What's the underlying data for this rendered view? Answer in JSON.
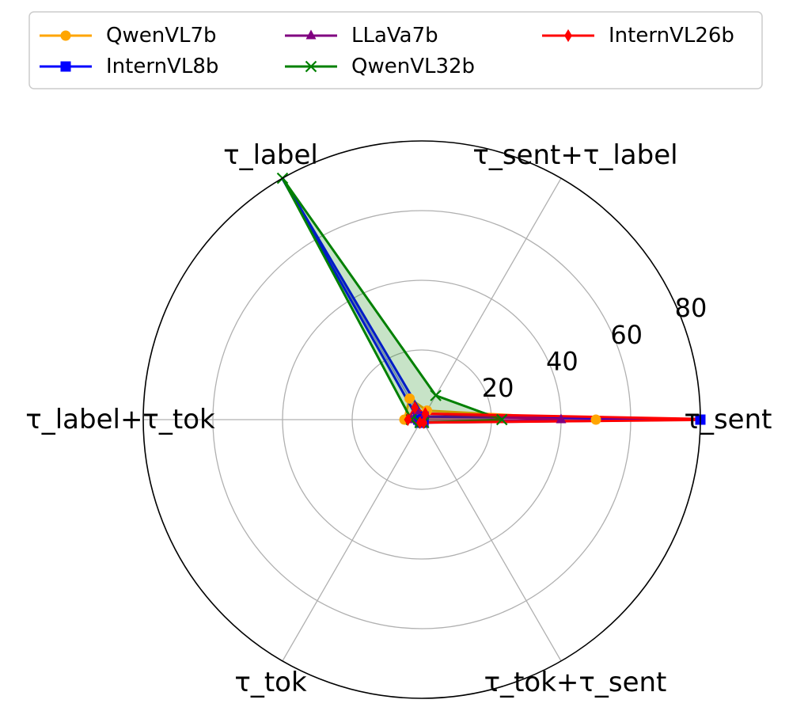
{
  "chart_data": {
    "type": "radar",
    "axes": [
      "τ_sent",
      "τ_sent+τ_label",
      "τ_label",
      "τ_label+τ_tok",
      "τ_tok",
      "τ_tok+τ_sent"
    ],
    "radial_ticks": [
      "20",
      "40",
      "60",
      "80"
    ],
    "rlim": [
      0,
      80
    ],
    "grid": true,
    "legend_position": "top",
    "series": [
      {
        "name": "QwenVL7b",
        "color": "#ffa500",
        "marker": "circle",
        "values": [
          50,
          3,
          7,
          5,
          1,
          1
        ]
      },
      {
        "name": "InternVL8b",
        "color": "#0000ff",
        "marker": "square",
        "values": [
          80,
          1,
          90,
          1,
          1,
          1
        ]
      },
      {
        "name": "LLaVa7b",
        "color": "#800080",
        "marker": "triangle",
        "values": [
          40,
          2,
          3,
          3,
          1,
          1
        ]
      },
      {
        "name": "QwenVL32b",
        "color": "#008000",
        "marker": "x",
        "values": [
          23,
          8,
          80,
          3,
          1,
          1
        ]
      },
      {
        "name": "InternVL26b",
        "color": "#ff0000",
        "marker": "diamond",
        "values": [
          90,
          2,
          4,
          4,
          1,
          1
        ]
      }
    ]
  }
}
